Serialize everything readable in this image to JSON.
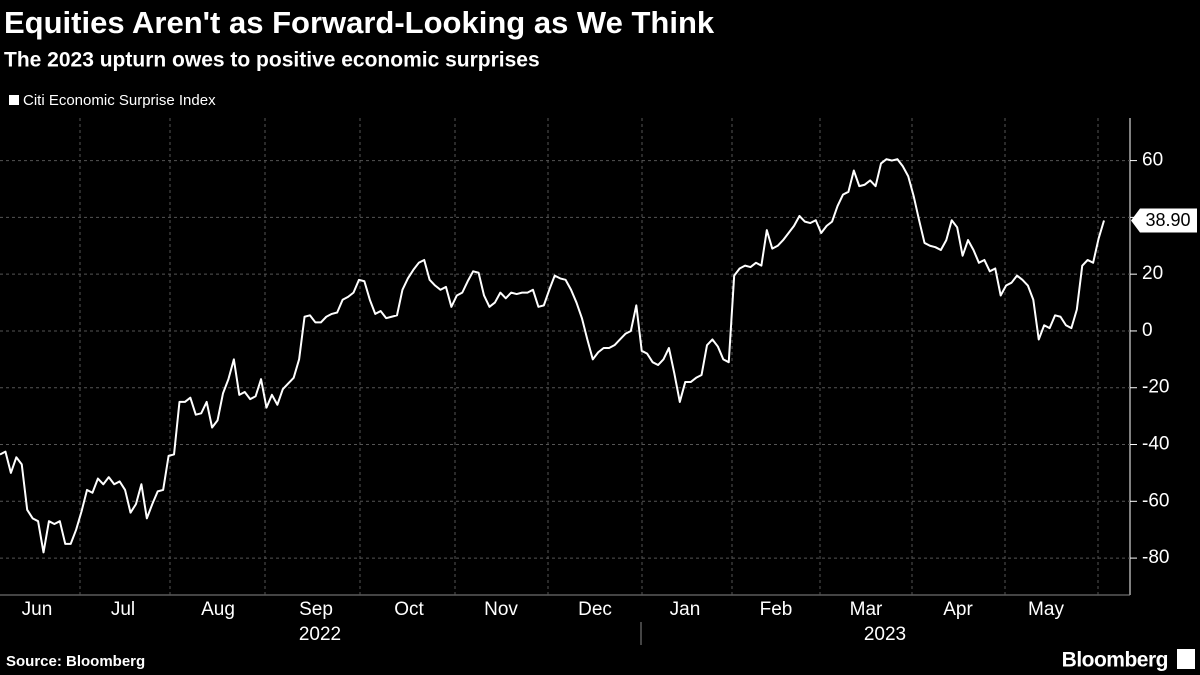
{
  "chart_data": {
    "type": "line",
    "title": "Equities Aren't as Forward-Looking as We Think",
    "subtitle": "The 2023 upturn owes to positive economic surprises",
    "source": "Source: Bloomberg",
    "brand": "Bloomberg",
    "months": [
      "Jun",
      "Jul",
      "Aug",
      "Sep",
      "Oct",
      "Nov",
      "Dec",
      "Jan",
      "Feb",
      "Mar",
      "Apr",
      "May"
    ],
    "years": [
      "2022",
      "2023"
    ],
    "ylim": [
      -93,
      75
    ],
    "yticks": [
      -80,
      -60,
      -40,
      -20,
      0,
      20,
      40,
      60
    ],
    "grid": true,
    "series": [
      {
        "name": "Citi Economic Surprise Index",
        "color": "#ffffff",
        "values": [
          -43.5,
          -42.5,
          -50,
          -44.5,
          -47,
          -63,
          -66,
          -67,
          -78,
          -67,
          -68,
          -67,
          -75,
          -75,
          -70,
          -63.5,
          -56,
          -57,
          -52,
          -54,
          -51.5,
          -54,
          -53,
          -56,
          -64,
          -61,
          -54,
          -66,
          -61,
          -56.5,
          -56,
          -44,
          -43.5,
          -25,
          -25,
          -23.5,
          -29.5,
          -29,
          -25,
          -34,
          -31.5,
          -22,
          -17,
          -10,
          -22.5,
          -21.5,
          -24,
          -23,
          -17,
          -27,
          -22.5,
          -26,
          -20.5,
          -18.5,
          -16.5,
          -10,
          5,
          5.5,
          3,
          3,
          5,
          6,
          6.5,
          11,
          12,
          13.5,
          18,
          17.5,
          11,
          6,
          7,
          4.5,
          5,
          5.5,
          14.5,
          18.5,
          21.5,
          24,
          25,
          18,
          16,
          14.5,
          15.5,
          8.5,
          12.5,
          13.5,
          17.5,
          21,
          20.5,
          12.5,
          8.5,
          10,
          13.5,
          11.5,
          13.5,
          13,
          13.5,
          13.5,
          14.5,
          8.5,
          9,
          14.5,
          19.5,
          18.5,
          18,
          14.5,
          10,
          4.5,
          -3,
          -10,
          -7.5,
          -6,
          -6,
          -5,
          -3,
          -1,
          0,
          9,
          -7,
          -8,
          -11,
          -12,
          -10,
          -6,
          -15,
          -25,
          -18,
          -18,
          -16.5,
          -15.5,
          -5,
          -3,
          -5.5,
          -10,
          -11,
          19.5,
          22,
          23,
          22.5,
          24,
          23,
          35.5,
          29,
          30,
          32,
          34.5,
          37,
          40.5,
          38.5,
          38,
          39,
          34.5,
          37,
          38.5,
          44,
          48,
          49,
          56.5,
          51,
          51.5,
          53,
          51,
          59,
          60.5,
          60,
          60.5,
          58,
          54.5,
          47.5,
          39,
          31,
          30,
          29.5,
          28.5,
          32,
          39,
          36.5,
          26.5,
          32,
          28.5,
          24,
          25,
          21,
          22,
          12.5,
          16,
          17,
          19.5,
          18,
          16,
          11,
          -3,
          2,
          1,
          5.5,
          5,
          2,
          1,
          7.5,
          23,
          25,
          24,
          32.5,
          38.9
        ],
        "value_labels": [
          null,
          null,
          null,
          null,
          null,
          null,
          null,
          null,
          null,
          null,
          null,
          null,
          null,
          null,
          null,
          null,
          null,
          null,
          null,
          null,
          null,
          null,
          null,
          null,
          null,
          null,
          null,
          null,
          null,
          null,
          null,
          null,
          null,
          null,
          null,
          null,
          null,
          null,
          null,
          null,
          null,
          null,
          null,
          null,
          null,
          null,
          null,
          null,
          null,
          null,
          null,
          null,
          null,
          null,
          null,
          null,
          null,
          null,
          null,
          null,
          null,
          null,
          null,
          null,
          null,
          null,
          null,
          null,
          null,
          null,
          null,
          null,
          null,
          null,
          null,
          null,
          null,
          null,
          null,
          null,
          null,
          null,
          null,
          null,
          null,
          null,
          null,
          null,
          null,
          null,
          null,
          null,
          null,
          null,
          null,
          null,
          null,
          null,
          null,
          null,
          null,
          null,
          null,
          null,
          null,
          null,
          null,
          null,
          null,
          null,
          null,
          null,
          null,
          null,
          null,
          null,
          null,
          null,
          null,
          null,
          null,
          null,
          null,
          null,
          null,
          null,
          null,
          null,
          null,
          null,
          null,
          null,
          null,
          null,
          null,
          null,
          null,
          null,
          null,
          null,
          null,
          null,
          null,
          null,
          null,
          null,
          null,
          null,
          null,
          null,
          null,
          null,
          null,
          null,
          null,
          null,
          null,
          null,
          null,
          null,
          null,
          null,
          null,
          null,
          null,
          null,
          null,
          null,
          null,
          null,
          null,
          null,
          null,
          null,
          null,
          null,
          null,
          null,
          null,
          null,
          null,
          null,
          null,
          null,
          null,
          null,
          null,
          null,
          null,
          null,
          null,
          null,
          null,
          null,
          null,
          null,
          null,
          null,
          null,
          null,
          null,
          null,
          null,
          "38.90"
        ]
      }
    ]
  }
}
